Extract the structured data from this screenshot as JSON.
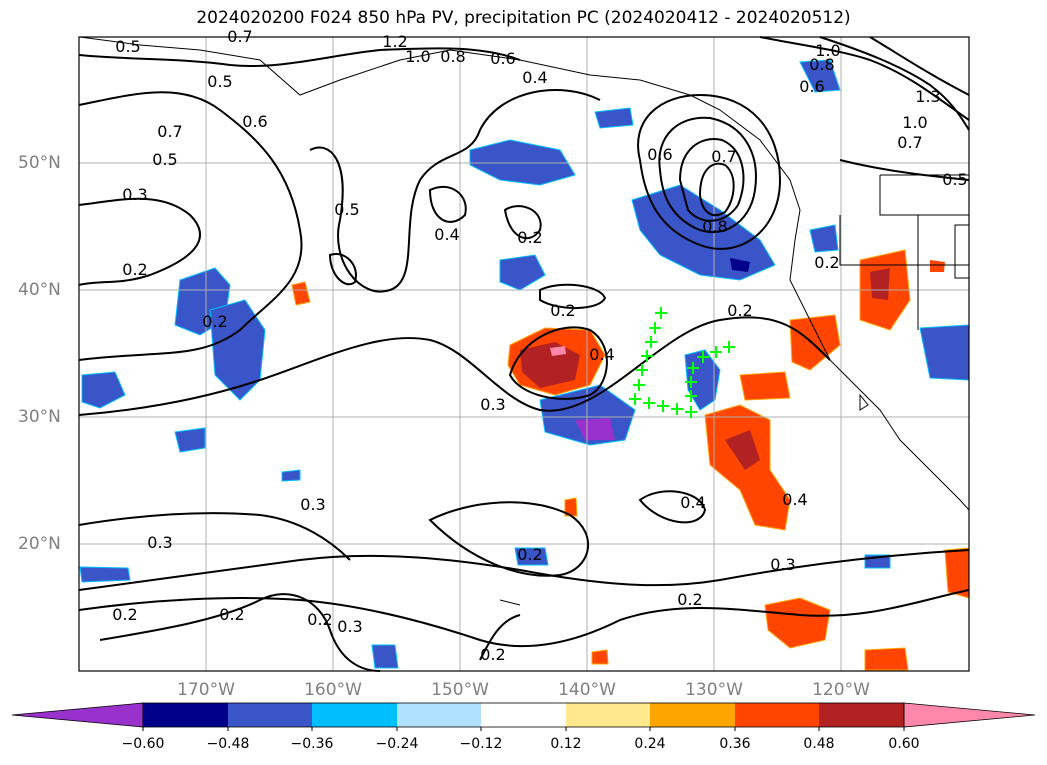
{
  "title": "2024020200 F024 850 hPa PV, precipitation PC (2024020412 - 2024020512)",
  "map": {
    "lon_labels": [
      "170°W",
      "160°W",
      "150°W",
      "140°W",
      "130°W",
      "120°W"
    ],
    "lat_labels": [
      "50°N",
      "40°N",
      "30°N",
      "20°N"
    ],
    "extent": {
      "lon": [
        -180,
        -110
      ],
      "lat": [
        10,
        60
      ]
    },
    "pv_contour_labels": [
      "0.5",
      "0.7",
      "1.2",
      "1.0",
      "0.8",
      "0.6",
      "0.4",
      "0.5",
      "0.6",
      "0.7",
      "0.5",
      "0.3",
      "0.2",
      "0.2",
      "0.5",
      "0.4",
      "0.2",
      "0.6",
      "0.7",
      "0.8",
      "1.0",
      "0.8",
      "0.6",
      "1.3",
      "1.0",
      "0.7",
      "0.5",
      "0.2",
      "0.2",
      "0.4",
      "0.3",
      "0.2",
      "0.3",
      "0.3",
      "0.2",
      "0.4",
      "0.4",
      "0.3",
      "0.2",
      "0.2",
      "0.3",
      "0.2",
      "0.2",
      "0.2"
    ],
    "pv_contour_color": "#000000",
    "gridlines": true,
    "coastline_color": "#000000",
    "marker_color": "#00ff00",
    "marker_symbol": "+"
  },
  "colorbar": {
    "ticks": [
      "−0.60",
      "−0.48",
      "−0.36",
      "−0.24",
      "−0.12",
      "0.12",
      "0.24",
      "0.36",
      "0.48",
      "0.60"
    ],
    "colors": [
      "#9932cc",
      "#00008b",
      "#3a55c8",
      "#00bfff",
      "#b0e2ff",
      "#ffffff",
      "#ffe98c",
      "#ffa500",
      "#ff4500",
      "#b22222",
      "#ff88aa"
    ],
    "extend": "both"
  }
}
